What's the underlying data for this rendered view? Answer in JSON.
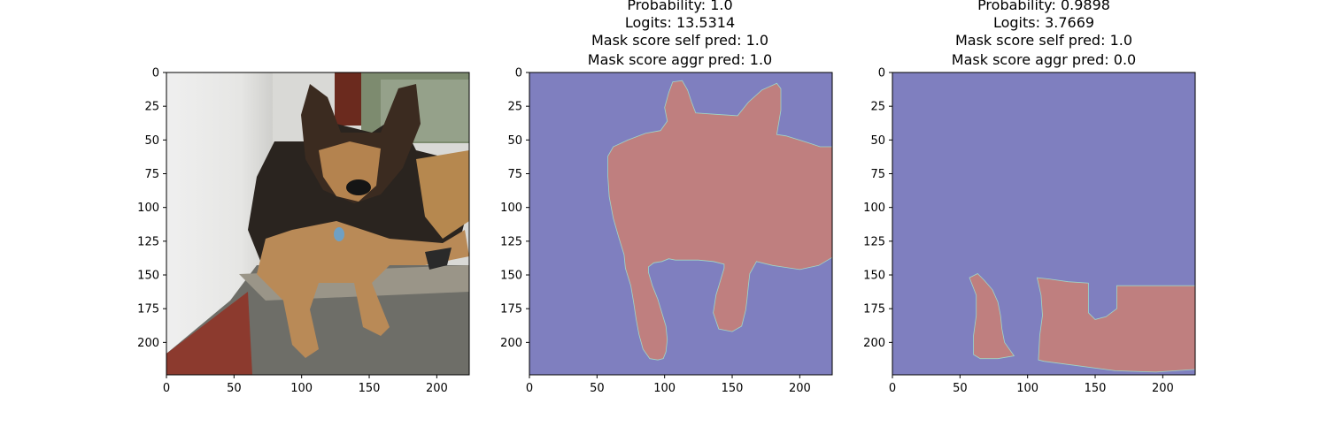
{
  "chart_data": [
    {
      "type": "image",
      "title_lines": [],
      "image_content": "photo",
      "x_ticks": [
        0,
        50,
        100,
        150,
        200
      ],
      "y_ticks": [
        0,
        25,
        50,
        75,
        100,
        125,
        150,
        175,
        200
      ],
      "xlim": [
        0,
        224
      ],
      "ylim": [
        224,
        0
      ]
    },
    {
      "type": "heatmap",
      "title_lines": [
        "Probability: 1.0",
        "Logits: 13.5314",
        "Mask score self pred: 1.0",
        "Mask score aggr pred: 1.0"
      ],
      "background_color": "#7f7fbf",
      "mask_color": "#bf7f7f",
      "x_ticks": [
        0,
        50,
        100,
        150,
        200
      ],
      "y_ticks": [
        0,
        25,
        50,
        75,
        100,
        125,
        150,
        175,
        200
      ],
      "xlim": [
        0,
        224
      ],
      "ylim": [
        224,
        0
      ],
      "mask_outline": [
        [
          106,
          7
        ],
        [
          113,
          6
        ],
        [
          117,
          13
        ],
        [
          120,
          22
        ],
        [
          123,
          30
        ],
        [
          138,
          31
        ],
        [
          154,
          32
        ],
        [
          162,
          22
        ],
        [
          172,
          13
        ],
        [
          183,
          8
        ],
        [
          186,
          12
        ],
        [
          186,
          28
        ],
        [
          184,
          40
        ],
        [
          183,
          46
        ],
        [
          190,
          47
        ],
        [
          206,
          52
        ],
        [
          215,
          55
        ],
        [
          224,
          55
        ],
        [
          224,
          137
        ],
        [
          214,
          143
        ],
        [
          200,
          146
        ],
        [
          180,
          143
        ],
        [
          168,
          140
        ],
        [
          163,
          149
        ],
        [
          162,
          158
        ],
        [
          161,
          168
        ],
        [
          160,
          176
        ],
        [
          157,
          188
        ],
        [
          150,
          192
        ],
        [
          140,
          190
        ],
        [
          136,
          178
        ],
        [
          138,
          165
        ],
        [
          141,
          155
        ],
        [
          144,
          145
        ],
        [
          144,
          142
        ],
        [
          136,
          140
        ],
        [
          125,
          139
        ],
        [
          108,
          139
        ],
        [
          103,
          138
        ],
        [
          98,
          140
        ],
        [
          92,
          141
        ],
        [
          88,
          144
        ],
        [
          88,
          148
        ],
        [
          91,
          158
        ],
        [
          95,
          168
        ],
        [
          98,
          178
        ],
        [
          101,
          188
        ],
        [
          102,
          198
        ],
        [
          101,
          207
        ],
        [
          99,
          212
        ],
        [
          95,
          213
        ],
        [
          89,
          212
        ],
        [
          84,
          205
        ],
        [
          81,
          194
        ],
        [
          79,
          183
        ],
        [
          77,
          170
        ],
        [
          75,
          158
        ],
        [
          71,
          145
        ],
        [
          70,
          135
        ],
        [
          66,
          122
        ],
        [
          62,
          108
        ],
        [
          59,
          92
        ],
        [
          58,
          77
        ],
        [
          58,
          62
        ],
        [
          62,
          55
        ],
        [
          73,
          50
        ],
        [
          86,
          45
        ],
        [
          97,
          43
        ],
        [
          102,
          36
        ],
        [
          100,
          26
        ],
        [
          103,
          15
        ]
      ]
    },
    {
      "type": "heatmap",
      "title_lines": [
        "Probability: 0.9898",
        "Logits: 3.7669",
        "Mask score self pred: 1.0",
        "Mask score aggr pred: 0.0"
      ],
      "background_color": "#7f7fbf",
      "mask_color": "#bf7f7f",
      "x_ticks": [
        0,
        50,
        100,
        150,
        200
      ],
      "y_ticks": [
        0,
        25,
        50,
        75,
        100,
        125,
        150,
        175,
        200
      ],
      "xlim": [
        0,
        224
      ],
      "ylim": [
        224,
        0
      ],
      "mask_outline": [
        [
          57,
          152
        ],
        [
          63,
          149
        ],
        [
          68,
          154
        ],
        [
          74,
          161
        ],
        [
          78,
          170
        ],
        [
          80,
          180
        ],
        [
          81,
          190
        ],
        [
          83,
          200
        ],
        [
          90,
          210
        ],
        [
          78,
          212
        ],
        [
          65,
          212
        ],
        [
          60,
          209
        ],
        [
          60,
          195
        ],
        [
          62,
          180
        ],
        [
          62,
          165
        ]
      ],
      "mask_outline_2": [
        [
          107,
          152
        ],
        [
          116,
          153
        ],
        [
          130,
          155
        ],
        [
          145,
          156
        ],
        [
          145,
          168
        ],
        [
          145,
          178
        ],
        [
          150,
          183
        ],
        [
          158,
          181
        ],
        [
          166,
          175
        ],
        [
          166,
          158
        ],
        [
          224,
          158
        ],
        [
          224,
          220
        ],
        [
          195,
          222
        ],
        [
          165,
          221
        ],
        [
          135,
          217
        ],
        [
          112,
          214
        ],
        [
          108,
          213
        ],
        [
          109,
          195
        ],
        [
          111,
          180
        ],
        [
          110,
          165
        ]
      ]
    }
  ]
}
